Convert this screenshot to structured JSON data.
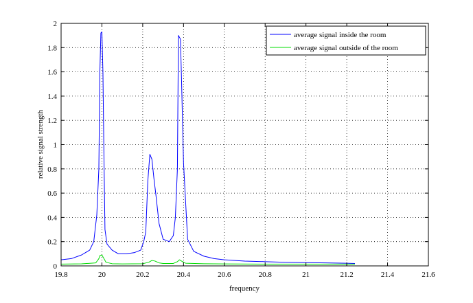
{
  "chart_data": {
    "type": "line",
    "title": "",
    "xlabel": "frequency",
    "ylabel": "relative signal strength",
    "xlim": [
      19.8,
      21.6
    ],
    "ylim": [
      0,
      2
    ],
    "xticks": [
      19.8,
      20,
      20.2,
      20.4,
      20.6,
      20.8,
      21,
      21.2,
      21.4,
      21.6
    ],
    "xtick_labels": [
      "19.8",
      "20",
      "20.2",
      "20.4",
      "20.6",
      "20.8",
      "21",
      "21.2",
      "21.4",
      "21.6"
    ],
    "yticks": [
      0,
      0.2,
      0.4,
      0.6,
      0.8,
      1,
      1.2,
      1.4,
      1.6,
      1.8,
      2
    ],
    "ytick_labels": [
      "0",
      "0.2",
      "0.4",
      "0.6",
      "0.8",
      "1",
      "1.2",
      "1.4",
      "1.6",
      "1.8",
      "2"
    ],
    "grid": true,
    "legend_position": "top-right",
    "series": [
      {
        "name": "average signal inside the room",
        "color": "#0000ff",
        "x": [
          19.8,
          19.85,
          19.9,
          19.94,
          19.96,
          19.975,
          19.985,
          19.99,
          19.995,
          20.0,
          20.005,
          20.01,
          20.015,
          20.025,
          20.05,
          20.08,
          20.12,
          20.16,
          20.19,
          20.205,
          20.215,
          20.225,
          20.235,
          20.245,
          20.255,
          20.265,
          20.28,
          20.3,
          20.33,
          20.35,
          20.36,
          20.37,
          20.375,
          20.385,
          20.39,
          20.4,
          20.42,
          20.45,
          20.5,
          20.55,
          20.6,
          20.7,
          20.8,
          20.9,
          21.0,
          21.1,
          21.2,
          21.24
        ],
        "y": [
          0.05,
          0.06,
          0.09,
          0.13,
          0.2,
          0.42,
          0.8,
          1.6,
          1.92,
          1.93,
          1.6,
          0.9,
          0.3,
          0.18,
          0.13,
          0.1,
          0.1,
          0.11,
          0.13,
          0.2,
          0.28,
          0.7,
          0.92,
          0.88,
          0.72,
          0.58,
          0.35,
          0.22,
          0.2,
          0.25,
          0.4,
          0.8,
          1.9,
          1.87,
          1.55,
          0.85,
          0.22,
          0.12,
          0.08,
          0.06,
          0.05,
          0.04,
          0.035,
          0.03,
          0.027,
          0.025,
          0.022,
          0.02
        ]
      },
      {
        "name": "average signal outside of the room",
        "color": "#00dd00",
        "x": [
          19.8,
          19.9,
          19.97,
          19.985,
          19.99,
          20.0,
          20.01,
          20.02,
          20.05,
          20.1,
          20.2,
          20.23,
          20.245,
          20.26,
          20.28,
          20.3,
          20.35,
          20.37,
          20.38,
          20.39,
          20.41,
          20.5,
          20.6,
          20.8,
          21.0,
          21.2,
          21.24
        ],
        "y": [
          0.015,
          0.017,
          0.025,
          0.06,
          0.085,
          0.09,
          0.06,
          0.03,
          0.018,
          0.016,
          0.018,
          0.03,
          0.045,
          0.04,
          0.025,
          0.02,
          0.02,
          0.035,
          0.05,
          0.04,
          0.022,
          0.018,
          0.016,
          0.015,
          0.015,
          0.015,
          0.015
        ]
      }
    ]
  }
}
